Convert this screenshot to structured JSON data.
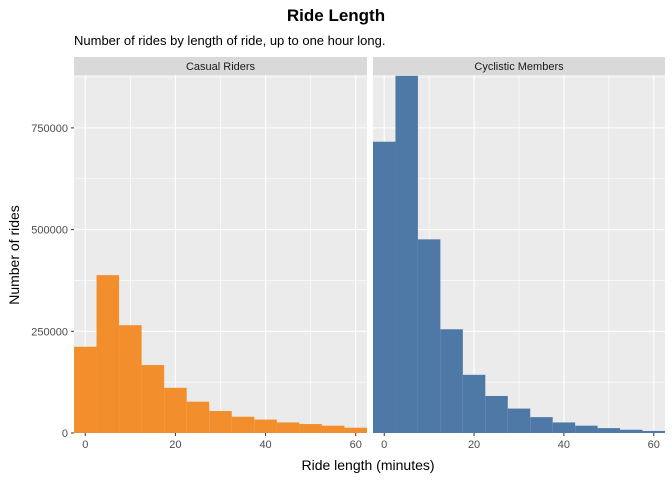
{
  "chart_data": {
    "type": "bar",
    "title": "Ride Length",
    "subtitle": "Number of rides by length of ride, up to one hour long.",
    "xlabel": "Ride length (minutes)",
    "ylabel": "Number of rides",
    "xlim": [
      -2.5,
      62.5
    ],
    "ylim": [
      0,
      880000
    ],
    "x_ticks": [
      0,
      20,
      40,
      60
    ],
    "y_ticks": [
      0,
      250000,
      500000,
      750000
    ],
    "bin_width": 5,
    "bin_centers": [
      0,
      5,
      10,
      15,
      20,
      25,
      30,
      35,
      40,
      45,
      50,
      55,
      60
    ],
    "grid": true,
    "facets": [
      {
        "name": "Casual Riders",
        "color": "#F28E2B",
        "values": [
          212000,
          388000,
          265000,
          167000,
          111000,
          77000,
          54000,
          40000,
          33000,
          26000,
          22000,
          18000,
          13000
        ]
      },
      {
        "name": "Cyclistic Members",
        "color": "#4E79A7",
        "values": [
          716000,
          878000,
          476000,
          255000,
          143000,
          91000,
          60000,
          39000,
          26000,
          18000,
          12000,
          8000,
          5000
        ]
      }
    ]
  }
}
